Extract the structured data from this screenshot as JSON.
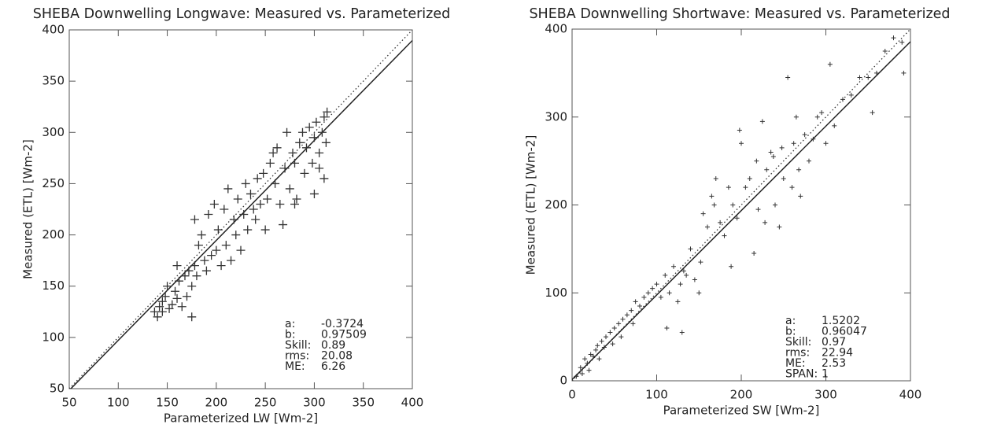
{
  "chart_data": [
    {
      "type": "scatter",
      "title": "SHEBA Downwelling Longwave: Measured vs. Parameterized",
      "x_label": "Parameterized LW [Wm-2]",
      "y_label": "Measured (ETL) [Wm-2]",
      "color": "#333333",
      "xlim": [
        50,
        400
      ],
      "ylim": [
        50,
        400
      ],
      "xticks": [
        50,
        100,
        150,
        200,
        250,
        300,
        350,
        400
      ],
      "yticks": [
        50,
        100,
        150,
        200,
        250,
        300,
        350,
        400
      ],
      "x": [
        137,
        140,
        142,
        145,
        148,
        150,
        152,
        155,
        158,
        160,
        162,
        165,
        168,
        170,
        172,
        175,
        178,
        178,
        180,
        182,
        185,
        188,
        190,
        192,
        195,
        198,
        200,
        202,
        205,
        208,
        210,
        212,
        215,
        218,
        220,
        222,
        225,
        228,
        230,
        232,
        235,
        238,
        240,
        242,
        245,
        248,
        250,
        252,
        255,
        258,
        260,
        262,
        265,
        268,
        270,
        272,
        275,
        278,
        280,
        282,
        285,
        288,
        290,
        292,
        295,
        298,
        300,
        302,
        305,
        308,
        310,
        310,
        312,
        313,
        305,
        300,
        280,
        175,
        145,
        160
      ],
      "values": [
        125,
        120,
        130,
        135,
        140,
        150,
        128,
        132,
        145,
        138,
        155,
        130,
        160,
        140,
        165,
        150,
        170,
        215,
        160,
        190,
        200,
        175,
        165,
        220,
        180,
        230,
        185,
        205,
        170,
        225,
        190,
        245,
        175,
        215,
        200,
        235,
        185,
        220,
        250,
        205,
        240,
        225,
        215,
        255,
        230,
        260,
        205,
        235,
        270,
        280,
        250,
        285,
        230,
        210,
        265,
        300,
        245,
        280,
        270,
        235,
        290,
        300,
        260,
        285,
        305,
        270,
        295,
        310,
        280,
        300,
        255,
        315,
        290,
        320,
        265,
        240,
        230,
        120,
        125,
        170
      ],
      "stats": [
        {
          "label": "a:",
          "value": -0.3724
        },
        {
          "label": "b:",
          "value": 0.97509
        },
        {
          "label": "Skill:",
          "value": 0.89
        },
        {
          "label": "rms:",
          "value": 20.08
        },
        {
          "label": "ME:",
          "value": 6.26
        }
      ]
    },
    {
      "type": "scatter",
      "title": "SHEBA Downwelling Shortwave: Measured vs. Parameterized",
      "x_label": "Parameterized SW [Wm-2]",
      "y_label": "Measured (ETL) [Wm-2]",
      "color": "#333333",
      "xlim": [
        0,
        400
      ],
      "ylim": [
        0,
        400
      ],
      "xticks": [
        0,
        100,
        200,
        300,
        400
      ],
      "yticks": [
        0,
        100,
        200,
        300,
        400
      ],
      "x": [
        5,
        10,
        12,
        15,
        18,
        20,
        22,
        25,
        28,
        30,
        32,
        35,
        38,
        40,
        45,
        48,
        50,
        55,
        58,
        60,
        65,
        70,
        72,
        75,
        80,
        85,
        90,
        95,
        100,
        105,
        110,
        112,
        115,
        120,
        125,
        128,
        130,
        132,
        135,
        140,
        145,
        150,
        152,
        155,
        160,
        165,
        168,
        170,
        175,
        180,
        185,
        188,
        190,
        195,
        198,
        200,
        205,
        210,
        215,
        218,
        220,
        225,
        228,
        230,
        235,
        238,
        240,
        245,
        248,
        250,
        255,
        260,
        262,
        265,
        268,
        270,
        275,
        280,
        285,
        290,
        295,
        300,
        305,
        310,
        320,
        330,
        340,
        350,
        355,
        360,
        370,
        380,
        390,
        392
      ],
      "values": [
        5,
        15,
        8,
        25,
        20,
        12,
        30,
        28,
        35,
        40,
        25,
        45,
        38,
        50,
        55,
        42,
        60,
        65,
        50,
        70,
        75,
        80,
        65,
        90,
        85,
        95,
        100,
        105,
        110,
        95,
        120,
        60,
        100,
        130,
        90,
        110,
        55,
        125,
        120,
        150,
        115,
        100,
        135,
        190,
        175,
        210,
        200,
        230,
        180,
        165,
        220,
        130,
        200,
        185,
        285,
        270,
        220,
        230,
        145,
        250,
        195,
        295,
        180,
        240,
        260,
        255,
        200,
        175,
        265,
        230,
        345,
        220,
        270,
        300,
        240,
        210,
        280,
        250,
        275,
        300,
        305,
        270,
        360,
        290,
        320,
        325,
        345,
        345,
        305,
        350,
        375,
        390,
        385,
        350
      ],
      "stats": [
        {
          "label": "a:",
          "value": 1.5202
        },
        {
          "label": "b:",
          "value": 0.96047
        },
        {
          "label": "Skill:",
          "value": 0.97
        },
        {
          "label": "rms:",
          "value": 22.94
        },
        {
          "label": "ME:",
          "value": 2.53
        },
        {
          "label": "SPAN:",
          "value": 1
        }
      ]
    }
  ]
}
